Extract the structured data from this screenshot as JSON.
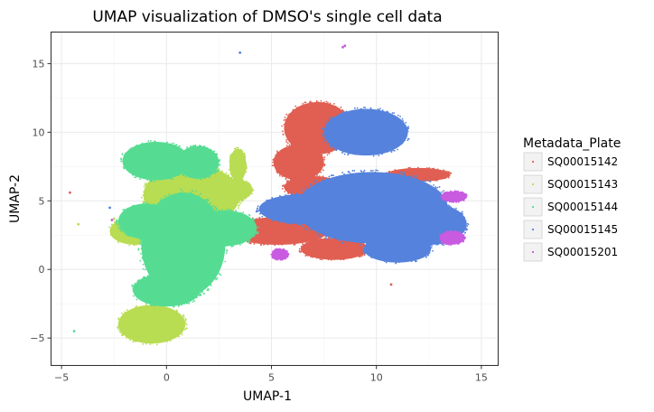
{
  "chart_data": {
    "type": "scatter",
    "title": "UMAP visualization of DMSO's single cell data",
    "xlabel": "UMAP-1",
    "ylabel": "UMAP-2",
    "xlim": [
      -5.5,
      15.8
    ],
    "ylim": [
      -7,
      17.3
    ],
    "x_ticks": [
      -5,
      0,
      5,
      10,
      15
    ],
    "y_ticks": [
      -5,
      0,
      5,
      10,
      15
    ],
    "x_tick_labels": [
      "−5",
      "0",
      "5",
      "10",
      "15"
    ],
    "y_tick_labels": [
      "−5",
      "0",
      "5",
      "10",
      "15"
    ],
    "grid": true,
    "legend": {
      "title": "Metadata_Plate",
      "placement": "right"
    },
    "series": [
      {
        "name": "SQ00015142",
        "color": "#e05f52",
        "clusters": [
          {
            "cx": 7.2,
            "cy": 10.3,
            "rx": 1.6,
            "ry": 1.9
          },
          {
            "cx": 6.3,
            "cy": 7.8,
            "rx": 1.2,
            "ry": 1.3
          },
          {
            "cx": 7.0,
            "cy": 6.0,
            "rx": 1.4,
            "ry": 0.8
          },
          {
            "cx": 5.3,
            "cy": 2.8,
            "rx": 2.4,
            "ry": 1.0
          },
          {
            "cx": 8.0,
            "cy": 1.5,
            "rx": 1.6,
            "ry": 0.8
          },
          {
            "cx": 12.0,
            "cy": 6.9,
            "rx": 1.5,
            "ry": 0.5
          }
        ],
        "points": [
          [
            -4.6,
            5.6
          ],
          [
            10.7,
            -1.1
          ]
        ]
      },
      {
        "name": "SQ00015143",
        "color": "#b8dc52",
        "clusters": [
          {
            "cx": -0.7,
            "cy": -4.0,
            "rx": 1.6,
            "ry": 1.4
          },
          {
            "cx": 1.2,
            "cy": 5.4,
            "rx": 2.3,
            "ry": 2.2
          },
          {
            "cx": 3.4,
            "cy": 7.6,
            "rx": 0.4,
            "ry": 1.2
          },
          {
            "cx": 3.2,
            "cy": 5.8,
            "rx": 0.9,
            "ry": 0.8
          },
          {
            "cx": -1.5,
            "cy": 2.8,
            "rx": 1.2,
            "ry": 1.0
          }
        ],
        "points": [
          [
            -2.5,
            3.7
          ],
          [
            -4.2,
            3.3
          ]
        ]
      },
      {
        "name": "SQ00015144",
        "color": "#55dc92",
        "clusters": [
          {
            "cx": -0.5,
            "cy": 7.9,
            "rx": 1.6,
            "ry": 1.4
          },
          {
            "cx": 1.5,
            "cy": 7.8,
            "rx": 1.0,
            "ry": 1.2
          },
          {
            "cx": 0.8,
            "cy": 1.8,
            "rx": 2.0,
            "ry": 3.8
          },
          {
            "cx": 2.8,
            "cy": 3.0,
            "rx": 1.5,
            "ry": 1.3
          },
          {
            "cx": -1.0,
            "cy": 3.5,
            "rx": 1.3,
            "ry": 1.3
          },
          {
            "cx": 0.0,
            "cy": -1.5,
            "rx": 1.6,
            "ry": 1.2
          }
        ],
        "points": [
          [
            -4.4,
            -4.5
          ]
        ]
      },
      {
        "name": "SQ00015145",
        "color": "#5582dc",
        "clusters": [
          {
            "cx": 9.5,
            "cy": 10.0,
            "rx": 2.0,
            "ry": 1.7
          },
          {
            "cx": 9.8,
            "cy": 4.5,
            "rx": 3.6,
            "ry": 2.6
          },
          {
            "cx": 12.6,
            "cy": 3.3,
            "rx": 1.7,
            "ry": 1.5
          },
          {
            "cx": 6.6,
            "cy": 4.4,
            "rx": 2.2,
            "ry": 1.1
          },
          {
            "cx": 11.0,
            "cy": 1.5,
            "rx": 1.6,
            "ry": 1.0
          }
        ],
        "points": [
          [
            3.5,
            15.8
          ],
          [
            -2.7,
            4.5
          ]
        ]
      },
      {
        "name": "SQ00015201",
        "color": "#c85be0",
        "clusters": [
          {
            "cx": 13.7,
            "cy": 5.3,
            "rx": 0.6,
            "ry": 0.4
          },
          {
            "cx": 13.6,
            "cy": 2.3,
            "rx": 0.6,
            "ry": 0.5
          },
          {
            "cx": 5.4,
            "cy": 1.1,
            "rx": 0.4,
            "ry": 0.4
          }
        ],
        "points": [
          [
            8.4,
            16.2
          ],
          [
            8.5,
            16.3
          ],
          [
            -2.6,
            3.6
          ]
        ]
      }
    ]
  }
}
